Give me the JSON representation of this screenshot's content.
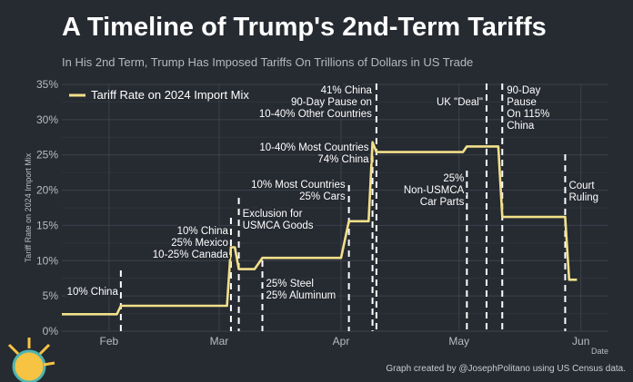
{
  "header": {
    "title": "A Timeline of Trump's 2nd-Term Tariffs",
    "subtitle": "In His 2nd Term, Trump Has Imposed Tariffs On Trillions of Dollars in US Trade"
  },
  "footer": {
    "credit": "Graph created by @JosephPolitano using US Census data."
  },
  "chart_data": {
    "type": "line",
    "ylabel": "Tariff Rate on 2024 Import Mix",
    "xlabel": "Date",
    "ylim": [
      0,
      35
    ],
    "y_ticks": [
      0,
      5,
      10,
      15,
      20,
      25,
      30,
      35
    ],
    "y_tick_labels": [
      "0%",
      "5%",
      "10%",
      "15%",
      "20%",
      "25%",
      "30%",
      "35%"
    ],
    "x_ticks": [
      "2025-02-01",
      "2025-03-01",
      "2025-04-01",
      "2025-05-01",
      "2025-06-01"
    ],
    "x_tick_labels": [
      "Feb",
      "Mar",
      "Apr",
      "May",
      "Jun"
    ],
    "xlim": [
      "2025-01-20",
      "2025-06-08"
    ],
    "grid": true,
    "legend_position": "top-left",
    "series": [
      {
        "name": "Tariff Rate on 2024 Import Mix",
        "color": "#f2e08a",
        "points": [
          [
            "2025-01-20",
            2.4
          ],
          [
            "2025-02-03",
            2.4
          ],
          [
            "2025-02-04",
            3.6
          ],
          [
            "2025-03-03",
            3.6
          ],
          [
            "2025-03-04",
            11.9
          ],
          [
            "2025-03-05",
            11.9
          ],
          [
            "2025-03-06",
            8.8
          ],
          [
            "2025-03-10",
            8.8
          ],
          [
            "2025-03-12",
            10.4
          ],
          [
            "2025-04-01",
            10.4
          ],
          [
            "2025-04-03",
            15.6
          ],
          [
            "2025-04-08",
            15.6
          ],
          [
            "2025-04-09",
            26.8
          ],
          [
            "2025-04-10",
            25.4
          ],
          [
            "2025-05-02",
            25.4
          ],
          [
            "2025-05-03",
            26.2
          ],
          [
            "2025-05-11",
            26.2
          ],
          [
            "2025-05-12",
            16.2
          ],
          [
            "2025-05-28",
            16.2
          ],
          [
            "2025-05-29",
            7.3
          ],
          [
            "2025-05-31",
            7.3
          ]
        ]
      }
    ],
    "events": [
      {
        "date": "2025-02-04",
        "lines": [
          "10% China"
        ]
      },
      {
        "date": "2025-03-04",
        "lines": [
          "10% China",
          "25% Mexico",
          "10-25% Canada"
        ]
      },
      {
        "date": "2025-03-06",
        "lines": [
          "Exclusion for",
          "USMCA Goods"
        ]
      },
      {
        "date": "2025-03-12",
        "lines": [
          "25% Steel",
          "25% Aluminum"
        ]
      },
      {
        "date": "2025-04-03",
        "lines": [
          "10% Most Countries",
          "25% Cars"
        ]
      },
      {
        "date": "2025-04-09",
        "lines": [
          "10-40% Most Countries",
          "74% China"
        ]
      },
      {
        "date": "2025-04-10",
        "lines": [
          "41% China",
          "90-Day Pause on",
          "10-40% Other Countries"
        ]
      },
      {
        "date": "2025-05-03",
        "lines": [
          "25%",
          "Non-USMCA",
          "Car Parts"
        ]
      },
      {
        "date": "2025-05-08",
        "lines": [
          "UK \"Deal\""
        ]
      },
      {
        "date": "2025-05-12",
        "lines": [
          "90-Day",
          "Pause",
          "On 115%",
          "China"
        ]
      },
      {
        "date": "2025-05-28",
        "lines": [
          "Court",
          "Ruling"
        ]
      }
    ]
  }
}
